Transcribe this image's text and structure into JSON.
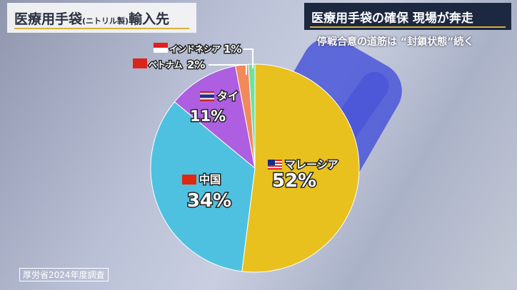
{
  "title": {
    "main": "医療用手袋",
    "paren": "(ニトリル製)",
    "suffix": "輸入先"
  },
  "headline": "医療用手袋の確保 現場が奔走",
  "subheadline": "停戦合意の道筋は “封鎖状態”続く",
  "source": "厚労省2024年度調査",
  "chart_data": {
    "type": "pie",
    "start": "top",
    "direction": "clockwise",
    "slices": [
      {
        "label": "マレーシア",
        "value": 52,
        "text": "52%",
        "color": "#e9c11f",
        "flag": "malaysia-flag-icon"
      },
      {
        "label": "中国",
        "value": 34,
        "text": "34%",
        "color": "#4fc1e0",
        "flag": "china-flag-icon"
      },
      {
        "label": "タイ",
        "value": 11,
        "text": "11%",
        "color": "#ae5ee0",
        "flag": "thailand-flag-icon"
      },
      {
        "label": "ベトナム",
        "value": 2,
        "text": "2%",
        "color": "#f08a5a",
        "flag": "vietnam-flag-icon"
      },
      {
        "label": "インドネシア",
        "value": 1,
        "text": "1%",
        "color": "#6fe0a0",
        "flag": "indonesia-flag-icon"
      }
    ]
  }
}
